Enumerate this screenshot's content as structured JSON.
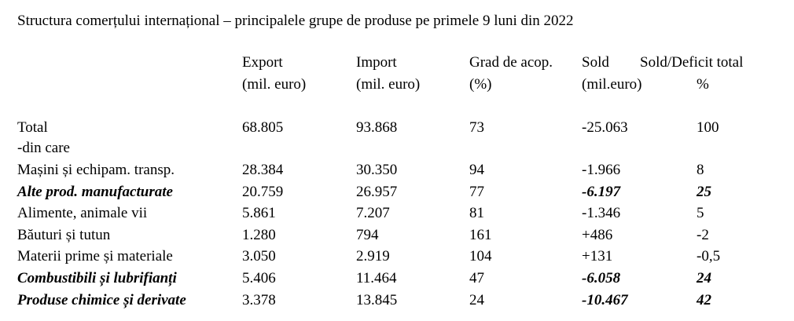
{
  "header": {
    "title": "Structura comerțului internațional – principalele grupe de produse pe primele 9 luni din 2022"
  },
  "table": {
    "columns": [
      [
        "Export",
        "(mil. euro)"
      ],
      [
        "Import",
        "(mil. euro)"
      ],
      [
        "Grad de acop.",
        "(%)"
      ],
      [
        "Sold",
        "(mil.euro)"
      ],
      [
        "Sold/Deficit total",
        "%"
      ]
    ],
    "rows": [
      [
        "Total",
        "68.805",
        "93.868",
        "73",
        "-25.063",
        "100"
      ],
      [
        "-din care"
      ],
      [
        "Mașini și echipam. transp.",
        "28.384",
        "30.350",
        "94",
        "-1.966",
        "8"
      ],
      [
        "Alte prod. manufacturate",
        "20.759",
        "26.957",
        "77",
        "-6.197",
        "25"
      ],
      [
        "Alimente, animale vii",
        "5.861",
        "7.207",
        "81",
        "-1.346",
        "5"
      ],
      [
        "Băuturi și tutun",
        "1.280",
        "794",
        "161",
        "+486",
        "-2"
      ],
      [
        "Materii prime și materiale",
        "3.050",
        "2.919",
        "104",
        "+131",
        "-0,5"
      ],
      [
        "Combustibili și lubrifianți",
        "5.406",
        "11.464",
        "47",
        "-6.058",
        "24"
      ],
      [
        "Produse chimice și derivate",
        "3.378",
        "13.845",
        "24",
        "-10.467",
        "42"
      ]
    ]
  }
}
